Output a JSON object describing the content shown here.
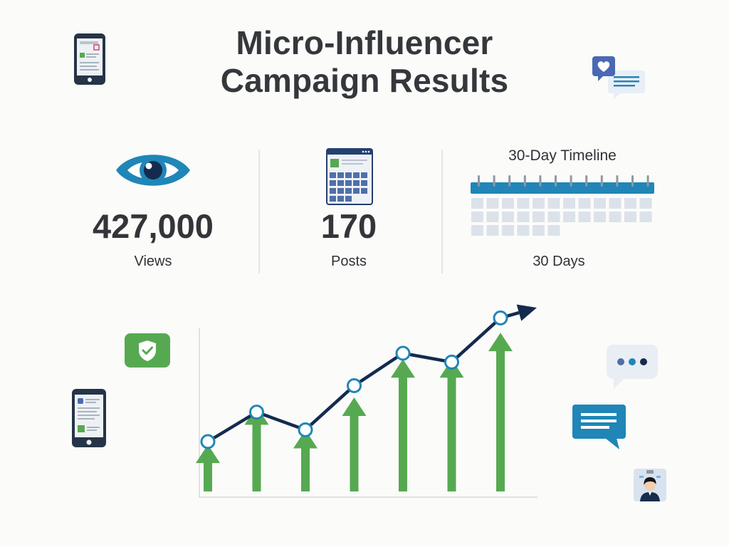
{
  "title": {
    "line1": "Micro-Influencer",
    "line2": "Campaign Results"
  },
  "stats": {
    "views": {
      "value": "427,000",
      "label": "Views",
      "icon": "eye-icon"
    },
    "posts": {
      "value": "170",
      "label": "Posts",
      "icon": "calendar-grid-icon"
    },
    "timeline": {
      "title": "30-Day Timeline",
      "label": "30 Days",
      "icon": "calendar-strip-icon"
    }
  },
  "icons": [
    "smartphone-icon",
    "chat-bubbles-heart-icon",
    "shield-check-icon",
    "typing-bubble-icon",
    "message-bubble-icon",
    "user-badge-icon"
  ],
  "colors": {
    "accent_blue": "#1f86b7",
    "dark_navy": "#142b4f",
    "green": "#56a951",
    "text": "#333539"
  },
  "chart_data": {
    "type": "line",
    "values": [
      1.5,
      2.5,
      1.9,
      3.4,
      4.5,
      4.2,
      5.7
    ],
    "bars": [
      1.4,
      2.7,
      1.9,
      3.0,
      4.3,
      4.3,
      5.2
    ]
  }
}
